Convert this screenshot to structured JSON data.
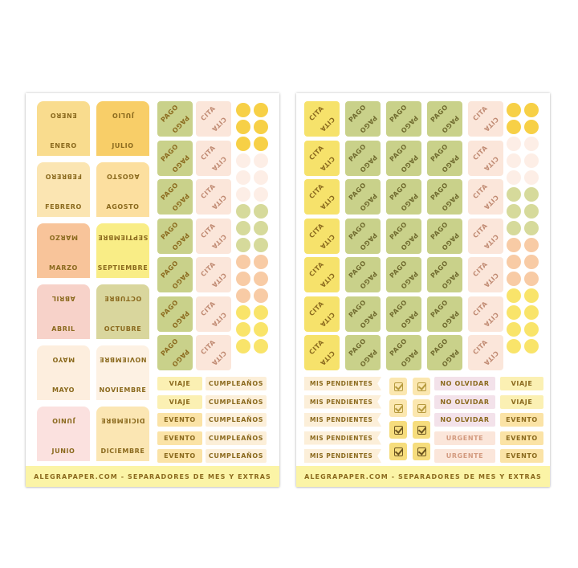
{
  "footer_text": "ALEGRAPAPER.COM - SEPARADORES DE MES Y EXTRAS",
  "colors": {
    "footer_bg": "#fbf4a6",
    "text_brown": "#8b6a1e",
    "yellow": "#f7de63",
    "olive": "#c9d18a",
    "peach": "#fbe6da",
    "pink": "#f6d0c6",
    "cream": "#fcefd9",
    "light_yellow": "#fbf0b3",
    "lavender": "#f3e2ea",
    "orange": "#f7c38d"
  },
  "months": [
    {
      "label": "ENERO",
      "color": "#f9dc8e"
    },
    {
      "label": "FEBRERO",
      "color": "#fbe5b2"
    },
    {
      "label": "MARZO",
      "color": "#f8c49a"
    },
    {
      "label": "ABRIL",
      "color": "#f7d2c9"
    },
    {
      "label": "MAYO",
      "color": "#fdeede"
    },
    {
      "label": "JUNIO",
      "color": "#fbe1df"
    },
    {
      "label": "JULIO",
      "color": "#f8ce68"
    },
    {
      "label": "AGOSTO",
      "color": "#fcdf9f"
    },
    {
      "label": "SEPTIEMBRE",
      "color": "#f9ed86"
    },
    {
      "label": "OCTUBRE",
      "color": "#d9d69d"
    },
    {
      "label": "NOVIEMBRE",
      "color": "#fdf1e3"
    },
    {
      "label": "DICIEMBRE",
      "color": "#fbe6b3"
    }
  ],
  "sheet1": {
    "pago": "PAGO",
    "cita": "CITA",
    "bottom_labels": [
      [
        "VIAJE",
        "CUMPLEAÑOS"
      ],
      [
        "VIAJE",
        "CUMPLEAÑOS"
      ],
      [
        "EVENTO",
        "CUMPLEAÑOS"
      ],
      [
        "EVENTO",
        "CUMPLEAÑOS"
      ],
      [
        "EVENTO",
        "CUMPLEAÑOS"
      ]
    ]
  },
  "sheet2": {
    "cita": "CITA",
    "pago": "PAGO",
    "flags": [
      "MIS PENDIENTES",
      "MIS PENDIENTES",
      "MIS PENDIENTES",
      "MIS PENDIENTES",
      "MIS PENDIENTES"
    ],
    "mid_labels": [
      "NO OLVIDAR",
      "NO OLVIDAR",
      "NO OLVIDAR",
      "URGENTE",
      "URGENTE"
    ],
    "right_labels": [
      "VIAJE",
      "VIAJE",
      "EVENTO",
      "EVENTO",
      "EVENTO"
    ]
  }
}
